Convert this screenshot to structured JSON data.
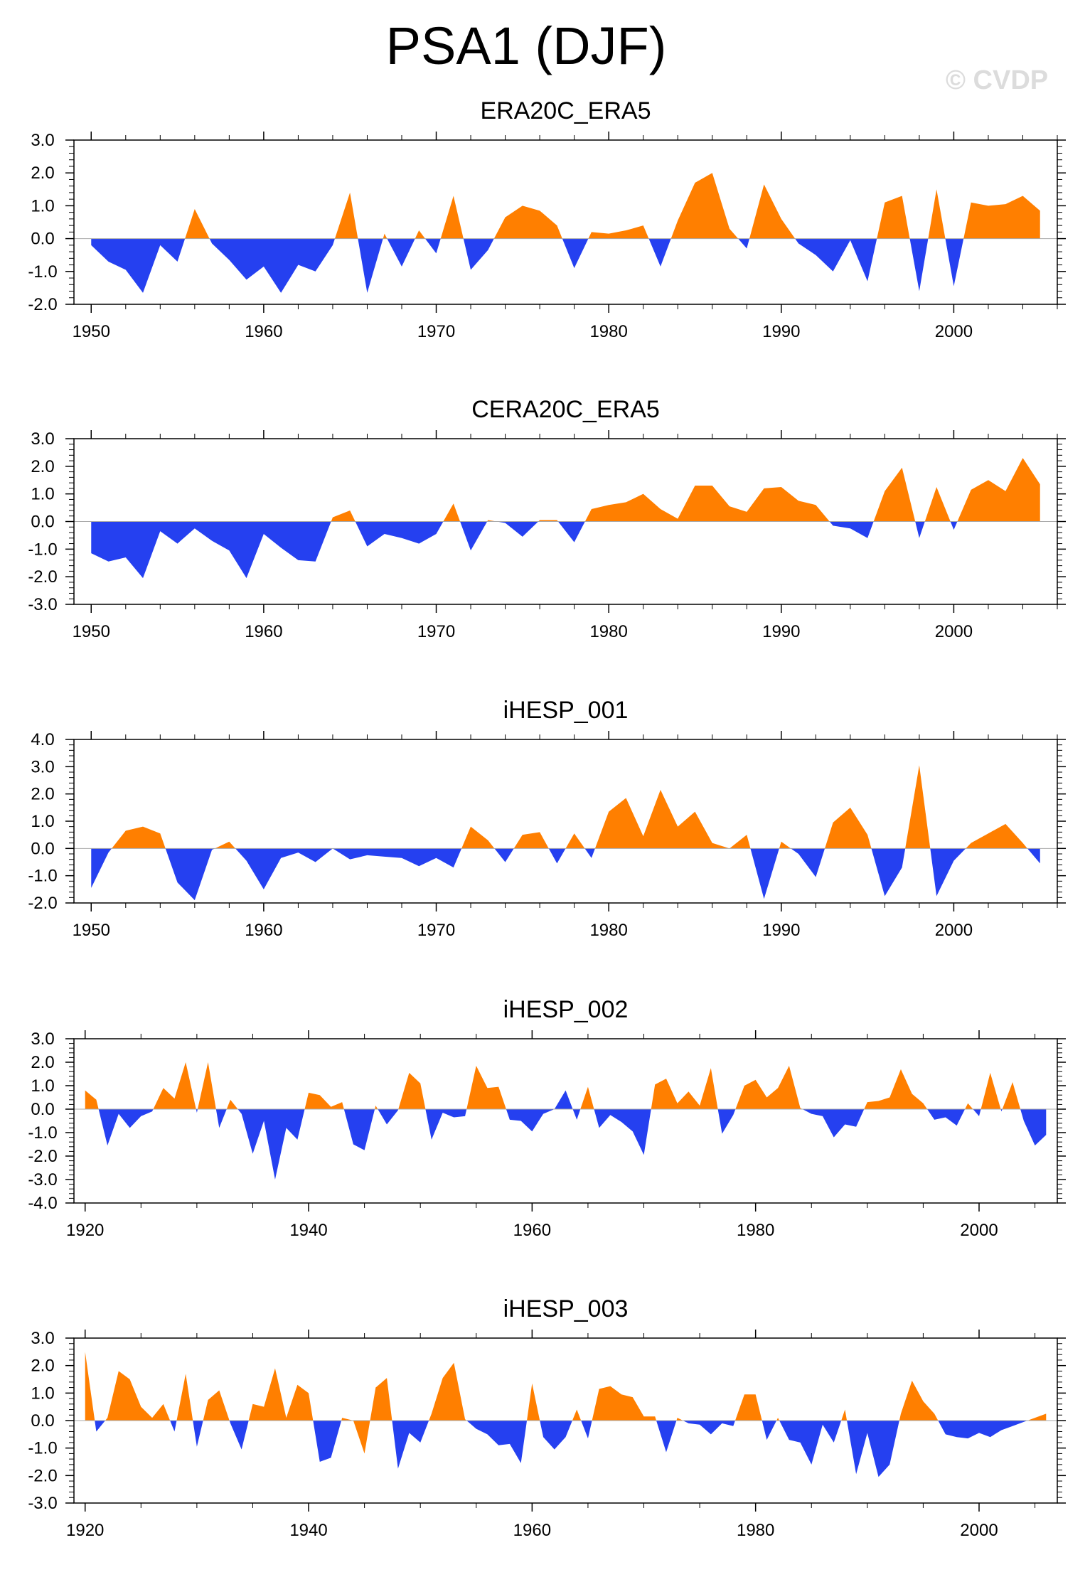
{
  "title": "PSA1 (DJF)",
  "watermark": "© CVDP",
  "colors": {
    "positive": "#ff7f00",
    "negative": "#2540f0",
    "axis": "#000000"
  },
  "chart_data": [
    {
      "type": "area",
      "title": "ERA20C_ERA5",
      "xlim": [
        1949,
        2006
      ],
      "ylim": [
        -2.0,
        3.0
      ],
      "yticks": [
        -2.0,
        -1.0,
        0.0,
        1.0,
        2.0,
        3.0
      ],
      "xticks": [
        1950,
        1960,
        1970,
        1980,
        1990,
        2000
      ],
      "start_year": 1950,
      "values": [
        -0.2,
        -0.7,
        -0.95,
        -1.65,
        -0.2,
        -0.7,
        0.9,
        -0.15,
        -0.65,
        -1.25,
        -0.85,
        -1.65,
        -0.8,
        -1.0,
        -0.2,
        1.4,
        -1.65,
        0.15,
        -0.85,
        0.25,
        -0.45,
        1.3,
        -0.95,
        -0.35,
        0.65,
        1.0,
        0.85,
        0.4,
        -0.9,
        0.2,
        0.15,
        0.25,
        0.4,
        -0.85,
        0.55,
        1.7,
        2.0,
        0.3,
        -0.3,
        1.65,
        0.6,
        -0.15,
        -0.5,
        -1.0,
        -0.05,
        -1.3,
        1.1,
        1.3,
        -1.6,
        1.5,
        -1.45,
        1.1,
        1.0,
        1.05,
        1.3,
        0.85
      ]
    },
    {
      "type": "area",
      "title": "CERA20C_ERA5",
      "xlim": [
        1949,
        2006
      ],
      "ylim": [
        -3.0,
        3.0
      ],
      "yticks": [
        -3.0,
        -2.0,
        -1.0,
        0.0,
        1.0,
        2.0,
        3.0
      ],
      "xticks": [
        1950,
        1960,
        1970,
        1980,
        1990,
        2000
      ],
      "start_year": 1950,
      "values": [
        -1.15,
        -1.45,
        -1.3,
        -2.05,
        -0.35,
        -0.8,
        -0.25,
        -0.7,
        -1.05,
        -2.05,
        -0.45,
        -0.95,
        -1.4,
        -1.45,
        0.15,
        0.4,
        -0.9,
        -0.45,
        -0.6,
        -0.8,
        -0.45,
        0.65,
        -1.05,
        0.05,
        -0.05,
        -0.55,
        0.05,
        0.05,
        -0.75,
        0.45,
        0.6,
        0.7,
        1.0,
        0.45,
        0.1,
        1.3,
        1.3,
        0.55,
        0.35,
        1.2,
        1.25,
        0.75,
        0.6,
        -0.15,
        -0.25,
        -0.6,
        1.1,
        1.95,
        -0.6,
        1.25,
        -0.3,
        1.15,
        1.5,
        1.1,
        2.3,
        1.35
      ]
    },
    {
      "type": "area",
      "title": "iHESP_001",
      "xlim": [
        1949,
        2006
      ],
      "ylim": [
        -2.0,
        4.0
      ],
      "yticks": [
        -2.0,
        -1.0,
        0.0,
        1.0,
        2.0,
        3.0,
        4.0
      ],
      "xticks": [
        1950,
        1960,
        1970,
        1980,
        1990,
        2000
      ],
      "start_year": 1950,
      "values": [
        -1.45,
        -0.15,
        0.65,
        0.8,
        0.55,
        -1.25,
        -1.9,
        -0.05,
        0.25,
        -0.45,
        -1.5,
        -0.35,
        -0.15,
        -0.5,
        0.0,
        -0.4,
        -0.25,
        -0.3,
        -0.35,
        -0.65,
        -0.35,
        -0.7,
        0.8,
        0.3,
        -0.5,
        0.5,
        0.6,
        -0.55,
        0.55,
        -0.35,
        1.35,
        1.85,
        0.45,
        2.15,
        0.8,
        1.35,
        0.2,
        0.0,
        0.5,
        -1.85,
        0.25,
        -0.2,
        -1.05,
        0.95,
        1.5,
        0.5,
        -1.75,
        -0.7,
        3.05,
        -1.75,
        -0.45,
        0.2,
        0.55,
        0.9,
        0.2,
        -0.55
      ]
    },
    {
      "type": "area",
      "title": "iHESP_002",
      "xlim": [
        1919,
        2007
      ],
      "ylim": [
        -4.0,
        3.0
      ],
      "yticks": [
        -4.0,
        -3.0,
        -2.0,
        -1.0,
        0.0,
        1.0,
        2.0,
        3.0
      ],
      "xticks": [
        1920,
        1940,
        1960,
        1980,
        2000
      ],
      "start_year": 1920,
      "values": [
        0.8,
        0.4,
        -1.55,
        -0.2,
        -0.8,
        -0.3,
        -0.1,
        0.9,
        0.45,
        2.0,
        -0.15,
        2.0,
        -0.8,
        0.4,
        -0.2,
        -1.9,
        -0.5,
        -3.0,
        -0.8,
        -1.3,
        0.7,
        0.6,
        0.1,
        0.3,
        -1.5,
        -1.75,
        0.15,
        -0.65,
        -0.05,
        1.55,
        1.1,
        -1.3,
        -0.15,
        -0.35,
        -0.3,
        1.85,
        0.9,
        0.95,
        -0.45,
        -0.5,
        -0.95,
        -0.2,
        0.0,
        0.8,
        -0.45,
        0.95,
        -0.8,
        -0.25,
        -0.55,
        -0.95,
        -1.95,
        1.05,
        1.3,
        0.25,
        0.75,
        0.15,
        1.75,
        -1.05,
        -0.25,
        1.0,
        1.25,
        0.5,
        0.9,
        1.85,
        0.05,
        -0.2,
        -0.3,
        -1.2,
        -0.65,
        -0.75,
        0.3,
        0.35,
        0.5,
        1.7,
        0.65,
        0.25,
        -0.45,
        -0.35,
        -0.7,
        0.25,
        -0.3,
        1.55,
        -0.1,
        1.15,
        -0.5,
        -1.55,
        -1.1
      ]
    },
    {
      "type": "area",
      "title": "iHESP_003",
      "xlim": [
        1919,
        2007
      ],
      "ylim": [
        -3.0,
        3.0
      ],
      "yticks": [
        -3.0,
        -2.0,
        -1.0,
        0.0,
        1.0,
        2.0,
        3.0
      ],
      "xticks": [
        1920,
        1940,
        1960,
        1980,
        2000
      ],
      "start_year": 1920,
      "values": [
        2.5,
        -0.4,
        0.1,
        1.8,
        1.5,
        0.5,
        0.1,
        0.6,
        -0.4,
        1.7,
        -0.95,
        0.75,
        1.1,
        -0.1,
        -1.05,
        0.6,
        0.5,
        1.9,
        0.1,
        1.3,
        1.0,
        -1.5,
        -1.35,
        0.1,
        0.0,
        -1.2,
        1.2,
        1.55,
        -1.75,
        -0.45,
        -0.8,
        0.25,
        1.55,
        2.1,
        0.05,
        -0.3,
        -0.5,
        -0.9,
        -0.85,
        -1.55,
        1.35,
        -0.6,
        -1.05,
        -0.6,
        0.4,
        -0.65,
        1.15,
        1.25,
        0.95,
        0.85,
        0.15,
        0.15,
        -1.15,
        0.1,
        -0.1,
        -0.15,
        -0.5,
        -0.1,
        -0.2,
        0.95,
        0.95,
        -0.7,
        0.1,
        -0.7,
        -0.8,
        -1.6,
        -0.15,
        -0.8,
        0.4,
        -1.95,
        -0.45,
        -2.05,
        -1.6,
        0.25,
        1.45,
        0.7,
        0.25,
        -0.5,
        -0.6,
        -0.65,
        -0.45,
        -0.6,
        -0.35,
        -0.2,
        -0.05,
        0.1,
        0.25
      ]
    }
  ]
}
